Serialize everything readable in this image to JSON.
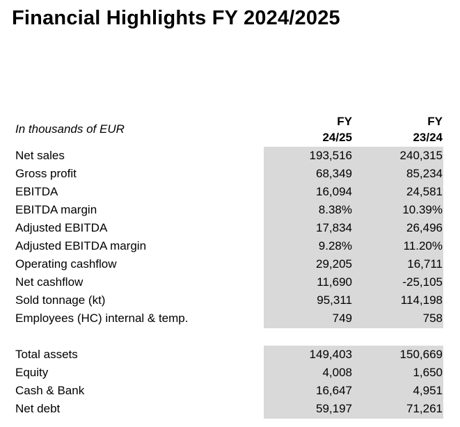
{
  "title": "Financial Highlights FY 2024/2025",
  "units_label": "In thousands of EUR",
  "columns": [
    {
      "line1": "FY",
      "line2": "24/25"
    },
    {
      "line1": "FY",
      "line2": "23/24"
    }
  ],
  "groups": [
    {
      "rows": [
        {
          "label": "Net sales",
          "fy2425": "193,516",
          "fy2324": "240,315"
        },
        {
          "label": "Gross profit",
          "fy2425": "68,349",
          "fy2324": "85,234"
        },
        {
          "label": "EBITDA",
          "fy2425": "16,094",
          "fy2324": "24,581"
        },
        {
          "label": "EBITDA margin",
          "fy2425": "8.38%",
          "fy2324": "10.39%"
        },
        {
          "label": "Adjusted EBITDA",
          "fy2425": "17,834",
          "fy2324": "26,496"
        },
        {
          "label": "Adjusted EBITDA margin",
          "fy2425": "9.28%",
          "fy2324": "11.20%"
        },
        {
          "label": "Operating cashflow",
          "fy2425": "29,205",
          "fy2324": "16,711"
        },
        {
          "label": "Net cashflow",
          "fy2425": "11,690",
          "fy2324": "-25,105"
        },
        {
          "label": "Sold tonnage (kt)",
          "fy2425": "95,311",
          "fy2324": "114,198"
        },
        {
          "label": "Employees (HC) internal & temp.",
          "fy2425": "749",
          "fy2324": "758"
        }
      ]
    },
    {
      "rows": [
        {
          "label": "Total assets",
          "fy2425": "149,403",
          "fy2324": "150,669"
        },
        {
          "label": "Equity",
          "fy2425": "4,008",
          "fy2324": "1,650"
        },
        {
          "label": "Cash & Bank",
          "fy2425": "16,647",
          "fy2324": "4,951"
        },
        {
          "label": "Net debt",
          "fy2425": "59,197",
          "fy2324": "71,261"
        }
      ]
    }
  ],
  "colors": {
    "band": "#d9d9d9",
    "text": "#000000",
    "background": "#ffffff"
  }
}
